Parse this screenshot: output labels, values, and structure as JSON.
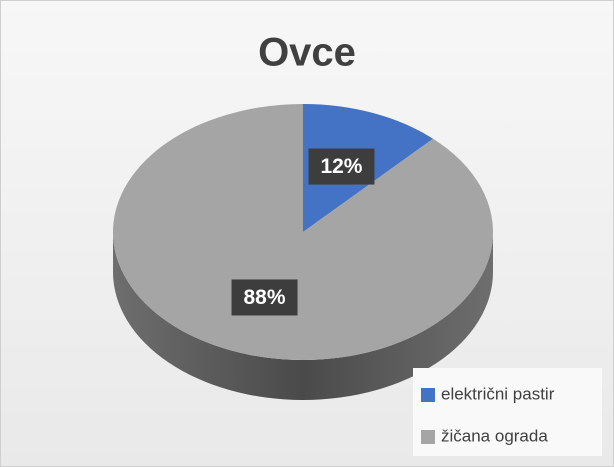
{
  "chart_data": {
    "type": "pie",
    "title": "Ovce",
    "categories": [
      "električni pastir",
      "žičana ograda"
    ],
    "values": [
      12,
      88
    ],
    "value_labels": [
      "12%",
      "88%"
    ],
    "colors": [
      "#4472c4",
      "#a5a5a5"
    ],
    "legend": "bottom-right",
    "three_d": true
  }
}
